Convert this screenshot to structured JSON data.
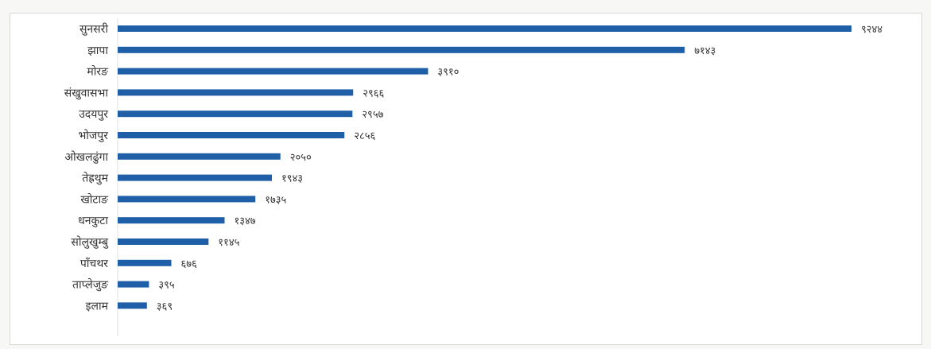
{
  "chart_data": {
    "type": "bar",
    "orientation": "horizontal",
    "categories": [
      "सुनसरी",
      "झापा",
      "मोरङ",
      "संखुवासभा",
      "उदयपुर",
      "भोजपुर",
      "ओखलढुंगा",
      "तेह्रथुम",
      "खोटाङ",
      "धनकुटा",
      "सोलुखुम्बु",
      "पाँचथर",
      "ताप्लेजुङ",
      "इलाम"
    ],
    "values": [
      9244,
      7143,
      3910,
      2966,
      2957,
      2856,
      2050,
      1943,
      1735,
      1347,
      1145,
      676,
      395,
      369
    ],
    "value_labels": [
      "९२४४",
      "७१४३",
      "३९१०",
      "२९६६",
      "२९५७",
      "२८५६",
      "२०५०",
      "१९४३",
      "१७३५",
      "१३४७",
      "११४५",
      "६७६",
      "३९५",
      "३६९"
    ],
    "xlim": [
      0,
      9244
    ],
    "grid": false,
    "bar_color": "#1f5fa8"
  }
}
